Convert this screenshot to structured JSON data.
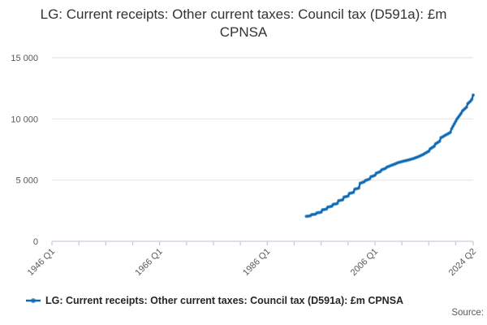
{
  "title": "LG: Current receipts: Other current taxes: Council tax (D591a): £m CPNSA",
  "legend": {
    "label": "LG: Current receipts: Other current taxes: Council tax (D591a): £m CPNSA"
  },
  "source_label": "Source:",
  "colors": {
    "line": "#1568af",
    "marker_halo": "#5ea6da",
    "grid": "#e4e4e4",
    "axis": "#c3cfdd",
    "tick_text": "#595959",
    "title_text": "#333333",
    "legend_text": "#262626"
  },
  "chart_data": {
    "type": "line",
    "title": "LG: Current receipts: Other current taxes: Council tax (D591a): £m CPNSA",
    "xlabel": "",
    "ylabel": "",
    "grid": "horizontal",
    "legend_position": "bottom-left",
    "ylim": [
      0,
      15000
    ],
    "yticks": [
      0,
      5000,
      10000,
      15000
    ],
    "ytick_labels": [
      "0",
      "5 000",
      "10 000",
      "15 000"
    ],
    "x_domain_labels": [
      "1946 Q1",
      "2024 Q2"
    ],
    "total_quarters": 313,
    "minor_tick_interval_quarters": 20,
    "xtick_labels": [
      {
        "label": "1946 Q1",
        "quarter_index": 0
      },
      {
        "label": "1966 Q1",
        "quarter_index": 80
      },
      {
        "label": "1986 Q1",
        "quarter_index": 160
      },
      {
        "label": "2006 Q1",
        "quarter_index": 240
      },
      {
        "label": "2024 Q2",
        "quarter_index": 313
      }
    ],
    "series": [
      {
        "name": "LG: Current receipts: Other current taxes: Council tax (D591a): £m CPNSA",
        "unit": "£m",
        "frequency": "quarterly",
        "start_label": "1993 Q2",
        "start_quarter_index": 189,
        "values": [
          2040,
          2050,
          2070,
          2090,
          2180,
          2190,
          2210,
          2230,
          2330,
          2340,
          2360,
          2380,
          2570,
          2590,
          2610,
          2640,
          2800,
          2820,
          2840,
          2870,
          3020,
          3040,
          3060,
          3090,
          3320,
          3340,
          3360,
          3390,
          3610,
          3640,
          3660,
          3690,
          3910,
          3940,
          3960,
          4000,
          4260,
          4290,
          4310,
          4350,
          4750,
          4780,
          4820,
          4860,
          4980,
          5010,
          5050,
          5090,
          5280,
          5310,
          5350,
          5390,
          5570,
          5610,
          5650,
          5700,
          5840,
          5880,
          5920,
          5970,
          6070,
          6110,
          6150,
          6200,
          6240,
          6280,
          6320,
          6370,
          6420,
          6450,
          6480,
          6510,
          6540,
          6570,
          6590,
          6620,
          6650,
          6680,
          6710,
          6740,
          6780,
          6820,
          6860,
          6900,
          6950,
          7000,
          7050,
          7100,
          7180,
          7240,
          7300,
          7360,
          7550,
          7620,
          7690,
          7760,
          7960,
          8030,
          8100,
          8170,
          8460,
          8520,
          8580,
          8650,
          8710,
          8770,
          8830,
          8900,
          9200,
          9400,
          9600,
          9800,
          10000,
          10150,
          10300,
          10450,
          10650,
          10750,
          10850,
          10950,
          11250,
          11350,
          11450,
          11600,
          11950
        ]
      }
    ]
  }
}
